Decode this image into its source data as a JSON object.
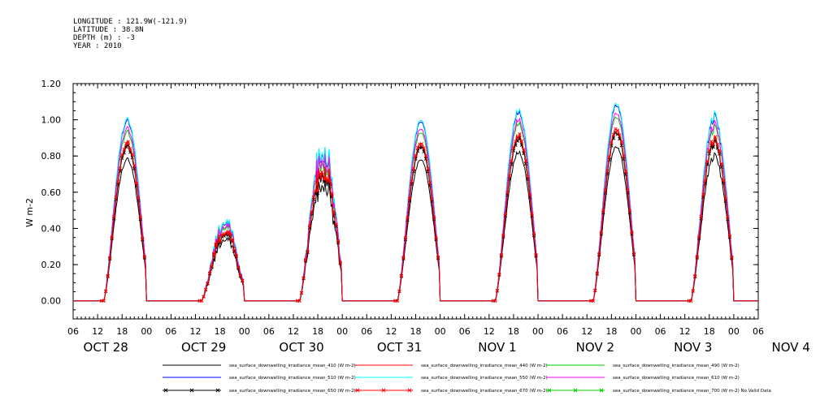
{
  "header": {
    "longitude": "LONGITUDE : 121.9W(-121.9)",
    "latitude": "LATITUDE : 38.8N",
    "depth": "DEPTH (m) : -3",
    "year": "YEAR : 2010"
  },
  "chart_data": {
    "type": "line",
    "ylabel": "W m-2",
    "ylim": [
      -0.1,
      1.2
    ],
    "yticks": [
      "0.00",
      "0.20",
      "0.40",
      "0.60",
      "0.80",
      "1.00",
      "1.20"
    ],
    "xlim_hours": [
      6,
      174
    ],
    "hour_ticks": [
      "06",
      "12",
      "18",
      "00"
    ],
    "day_labels": [
      "OCT 28",
      "OCT 29",
      "OCT 30",
      "OCT 31",
      "NOV  1",
      "NOV  2",
      "NOV  3",
      "NOV  4"
    ],
    "days": [
      {
        "label": "OCT 28",
        "peak": 1.02,
        "noise": 0.03
      },
      {
        "label": "OCT 29",
        "peak": 0.48,
        "noise": 0.18
      },
      {
        "label": "OCT 30",
        "peak": 0.95,
        "noise": 0.2
      },
      {
        "label": "OCT 31",
        "peak": 1.01,
        "noise": 0.02
      },
      {
        "label": "NOV  1",
        "peak": 1.07,
        "noise": 0.03
      },
      {
        "label": "NOV  2",
        "peak": 1.1,
        "noise": 0.02
      },
      {
        "label": "NOV  3",
        "peak": 1.05,
        "noise": 0.06
      }
    ],
    "series": [
      {
        "name": "sea_surface_downwelling_irradiance_mean_410 (W m-2)",
        "color": "#000000",
        "scale": 0.78,
        "marker": false
      },
      {
        "name": "sea_surface_downwelling_irradiance_mean_440 (W m-2)",
        "color": "#ff0000",
        "scale": 0.86,
        "marker": false
      },
      {
        "name": "sea_surface_downwelling_irradiance_mean_490 (W m-2)",
        "color": "#00cc00",
        "scale": 0.93,
        "marker": false
      },
      {
        "name": "sea_surface_downwelling_irradiance_mean_510 (W m-2)",
        "color": "#0000ff",
        "scale": 0.99,
        "marker": false
      },
      {
        "name": "sea_surface_downwelling_irradiance_mean_550 (W m-2)",
        "color": "#00ffff",
        "scale": 1.0,
        "marker": false
      },
      {
        "name": "sea_surface_downwelling_irradiance_mean_610 (W m-2)",
        "color": "#ff00ff",
        "scale": 0.95,
        "marker": false
      },
      {
        "name": "sea_surface_downwelling_irradiance_mean_650 (W m-2)",
        "color": "#000000",
        "scale": 0.85,
        "marker": true
      },
      {
        "name": "sea_surface_downwelling_irradiance_mean_670 (W m-2)",
        "color": "#ff0000",
        "scale": 0.87,
        "marker": true
      },
      {
        "name": "sea_surface_downwelling_irradiance_mean_700 (W m-2) No Valid Data",
        "color": "#00cc00",
        "scale": 0,
        "marker": true
      }
    ]
  }
}
